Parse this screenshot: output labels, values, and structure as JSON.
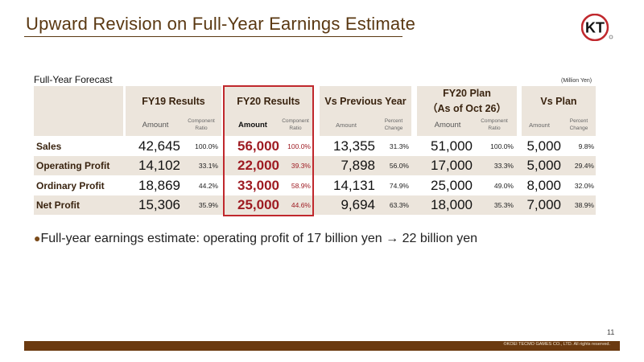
{
  "title": "Upward Revision on Full-Year Earnings Estimate",
  "logo_text": "KT",
  "subtitle": "Full-Year Forecast",
  "unit": "(Million Yen)",
  "columns": {
    "fy19": "FY19 Results",
    "fy20": "FY20 Results",
    "vs_prev": "Vs Previous Year",
    "plan_line1": "FY20 Plan",
    "plan_line2": "（As of Oct 26）",
    "vs_plan": "Vs Plan"
  },
  "subheaders": {
    "amount": "Amount",
    "component_ratio": "Component Ratio",
    "percent_change": "Percent Change"
  },
  "rows": [
    {
      "label": "Sales",
      "fy19_amt": "42,645",
      "fy19_ratio": "100.0%",
      "fy20_amt": "56,000",
      "fy20_ratio": "100.0%",
      "prev_amt": "13,355",
      "prev_pct": "31.3%",
      "plan_amt": "51,000",
      "plan_ratio": "100.0%",
      "vsplan_amt": "5,000",
      "vsplan_pct": "9.8%"
    },
    {
      "label": "Operating Profit",
      "fy19_amt": "14,102",
      "fy19_ratio": "33.1%",
      "fy20_amt": "22,000",
      "fy20_ratio": "39.3%",
      "prev_amt": "7,898",
      "prev_pct": "56.0%",
      "plan_amt": "17,000",
      "plan_ratio": "33.3%",
      "vsplan_amt": "5,000",
      "vsplan_pct": "29.4%"
    },
    {
      "label": "Ordinary Profit",
      "fy19_amt": "18,869",
      "fy19_ratio": "44.2%",
      "fy20_amt": "33,000",
      "fy20_ratio": "58.9%",
      "prev_amt": "14,131",
      "prev_pct": "74.9%",
      "plan_amt": "25,000",
      "plan_ratio": "49.0%",
      "vsplan_amt": "8,000",
      "vsplan_pct": "32.0%"
    },
    {
      "label": "Net Profit",
      "fy19_amt": "15,306",
      "fy19_ratio": "35.9%",
      "fy20_amt": "25,000",
      "fy20_ratio": "44.6%",
      "prev_amt": "9,694",
      "prev_pct": "63.3%",
      "plan_amt": "18,000",
      "plan_ratio": "35.3%",
      "vsplan_amt": "7,000",
      "vsplan_pct": "38.9%"
    }
  ],
  "bullet": "Full-year earnings estimate: operating profit of 17 billion yen → 22 billion yen",
  "page_number": "11",
  "copyright": "©KOEI TECMO GAMES CO., LTD. All rights reserved.",
  "colors": {
    "brand_brown": "#6b3a10",
    "highlight_red": "#c0282d",
    "value_red": "#9e1b22",
    "header_bg": "#ece5dc"
  }
}
